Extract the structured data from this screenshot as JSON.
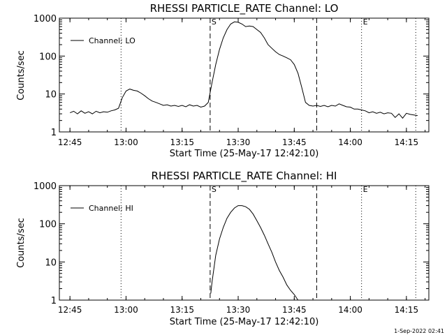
{
  "footer": {
    "timestamp": "1-Sep-2022 02:41"
  },
  "chart_data": [
    {
      "type": "line",
      "title": "RHESSI PARTICLE_RATE Channel: LO",
      "xlabel": "Start Time (25-May-17 12:42:10)",
      "ylabel": "Counts/sec",
      "yscale": "log",
      "ylim": [
        1,
        1000
      ],
      "xlim": [
        "12:42:10",
        "14:21:00"
      ],
      "x_ticks": [
        "12:45",
        "13:00",
        "13:15",
        "13:30",
        "13:45",
        "14:00",
        "14:15"
      ],
      "y_ticks": [
        "1",
        "10",
        "100",
        "1000"
      ],
      "legend": {
        "entries": [
          "Channel: LO"
        ],
        "position": "top-left"
      },
      "markers": [
        {
          "time": "12:58:40",
          "style": "dotted",
          "label": ""
        },
        {
          "time": "13:22:30",
          "style": "dashed",
          "label": "S"
        },
        {
          "time": "13:51:00",
          "style": "dashed",
          "label": ""
        },
        {
          "time": "14:03:00",
          "style": "dotted",
          "label": "E"
        },
        {
          "time": "14:17:30",
          "style": "dotted",
          "label": ""
        }
      ],
      "series": [
        {
          "name": "Channel: LO",
          "x": [
            "12:45",
            "12:46",
            "12:47",
            "12:48",
            "12:49",
            "12:50",
            "12:51",
            "12:52",
            "12:53",
            "12:54",
            "12:55",
            "12:56",
            "12:57",
            "12:58",
            "12:59",
            "13:00",
            "13:01",
            "13:02",
            "13:03",
            "13:04",
            "13:05",
            "13:06",
            "13:07",
            "13:08",
            "13:09",
            "13:10",
            "13:11",
            "13:12",
            "13:13",
            "13:14",
            "13:15",
            "13:16",
            "13:17",
            "13:18",
            "13:19",
            "13:20",
            "13:21",
            "13:22",
            "13:23",
            "13:24",
            "13:25",
            "13:26",
            "13:27",
            "13:28",
            "13:29",
            "13:30",
            "13:31",
            "13:32",
            "13:33",
            "13:34",
            "13:35",
            "13:36",
            "13:37",
            "13:38",
            "13:39",
            "13:40",
            "13:41",
            "13:42",
            "13:43",
            "13:44",
            "13:45",
            "13:46",
            "13:47",
            "13:48",
            "13:49",
            "13:50",
            "13:51",
            "13:52",
            "13:53",
            "13:54",
            "13:55",
            "13:56",
            "13:57",
            "13:58",
            "13:59",
            "14:00",
            "14:01",
            "14:02",
            "14:03",
            "14:04",
            "14:05",
            "14:06",
            "14:07",
            "14:08",
            "14:09",
            "14:10",
            "14:11",
            "14:12",
            "14:13",
            "14:14",
            "14:15",
            "14:16",
            "14:17",
            "14:18"
          ],
          "y": [
            3.2,
            3.5,
            3.0,
            3.6,
            3.1,
            3.4,
            3.0,
            3.5,
            3.2,
            3.4,
            3.3,
            3.6,
            3.8,
            4.2,
            8.0,
            12.0,
            13.5,
            12.5,
            12.0,
            10.5,
            9.0,
            7.5,
            6.5,
            6.0,
            5.5,
            5.0,
            5.2,
            4.8,
            5.0,
            4.7,
            5.0,
            4.6,
            5.2,
            4.8,
            5.0,
            4.5,
            4.8,
            6.0,
            20,
            60,
            150,
            300,
            500,
            700,
            800,
            780,
            700,
            600,
            620,
            600,
            500,
            420,
            300,
            200,
            160,
            130,
            110,
            100,
            90,
            80,
            60,
            35,
            15,
            6,
            5,
            4.8,
            5.0,
            4.7,
            5.0,
            4.6,
            5.0,
            4.8,
            5.5,
            5.0,
            4.6,
            4.5,
            4.0,
            4.0,
            3.8,
            3.6,
            3.2,
            3.4,
            3.1,
            3.3,
            3.0,
            3.2,
            3.1,
            2.4,
            3.0,
            2.3,
            3.1,
            2.9,
            2.8,
            2.7
          ]
        }
      ]
    },
    {
      "type": "line",
      "title": "RHESSI PARTICLE_RATE Channel: HI",
      "xlabel": "Start Time (25-May-17 12:42:10)",
      "ylabel": "Counts/sec",
      "yscale": "log",
      "ylim": [
        1,
        1000
      ],
      "xlim": [
        "12:42:10",
        "14:21:00"
      ],
      "x_ticks": [
        "12:45",
        "13:00",
        "13:15",
        "13:30",
        "13:45",
        "14:00",
        "14:15"
      ],
      "y_ticks": [
        "1",
        "10",
        "100",
        "1000"
      ],
      "legend": {
        "entries": [
          "Channel: HI"
        ],
        "position": "top-left"
      },
      "markers": [
        {
          "time": "12:58:40",
          "style": "dotted",
          "label": ""
        },
        {
          "time": "13:22:30",
          "style": "dashed",
          "label": "S"
        },
        {
          "time": "13:51:00",
          "style": "dashed",
          "label": ""
        },
        {
          "time": "14:03:00",
          "style": "dotted",
          "label": "E"
        },
        {
          "time": "14:17:30",
          "style": "dotted",
          "label": ""
        }
      ],
      "series": [
        {
          "name": "Channel: HI",
          "x": [
            "13:22:40",
            "13:23",
            "13:24",
            "13:25",
            "13:26",
            "13:27",
            "13:28",
            "13:29",
            "13:30",
            "13:31",
            "13:32",
            "13:33",
            "13:34",
            "13:35",
            "13:36",
            "13:37",
            "13:38",
            "13:39",
            "13:40",
            "13:41",
            "13:42",
            "13:43",
            "13:44",
            "13:45",
            "13:46"
          ],
          "y": [
            1.5,
            3.0,
            15,
            40,
            80,
            140,
            200,
            260,
            300,
            300,
            280,
            240,
            180,
            120,
            80,
            50,
            30,
            18,
            10,
            6,
            4,
            2.5,
            1.8,
            1.4,
            1.0
          ]
        }
      ]
    }
  ]
}
